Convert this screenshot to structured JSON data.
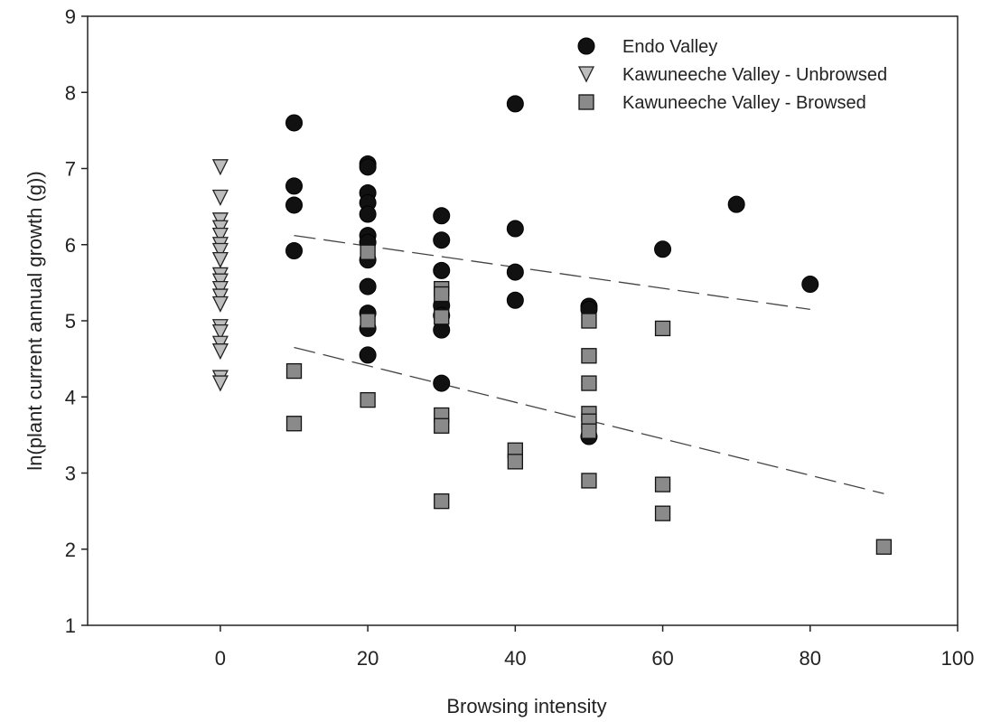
{
  "chart_data": {
    "type": "scatter",
    "xlabel": "Browsing intensity",
    "ylabel": "ln(plant current annual growth (g))",
    "xlim": [
      -18,
      100
    ],
    "ylim": [
      1,
      9
    ],
    "xticks": [
      0,
      20,
      40,
      60,
      80,
      100
    ],
    "yticks": [
      1,
      2,
      3,
      4,
      5,
      6,
      7,
      8,
      9
    ],
    "grid": false,
    "legend_position": "top-right",
    "series": [
      {
        "name": "Endo Valley",
        "marker": "circle",
        "color": "#111111",
        "points": [
          [
            10,
            7.6
          ],
          [
            10,
            6.77
          ],
          [
            10,
            6.52
          ],
          [
            10,
            5.92
          ],
          [
            20,
            7.06
          ],
          [
            20,
            7.02
          ],
          [
            20,
            6.68
          ],
          [
            20,
            6.55
          ],
          [
            20,
            6.4
          ],
          [
            20,
            6.12
          ],
          [
            20,
            6.03
          ],
          [
            20,
            5.8
          ],
          [
            20,
            5.45
          ],
          [
            20,
            5.1
          ],
          [
            20,
            4.9
          ],
          [
            20,
            4.55
          ],
          [
            30,
            6.38
          ],
          [
            30,
            6.06
          ],
          [
            30,
            5.66
          ],
          [
            30,
            5.2
          ],
          [
            30,
            5.07
          ],
          [
            30,
            4.88
          ],
          [
            30,
            4.18
          ],
          [
            40,
            7.85
          ],
          [
            40,
            6.21
          ],
          [
            40,
            5.64
          ],
          [
            40,
            5.27
          ],
          [
            50,
            5.19
          ],
          [
            50,
            5.15
          ],
          [
            50,
            3.48
          ],
          [
            60,
            5.94
          ],
          [
            70,
            6.53
          ],
          [
            80,
            5.48
          ]
        ]
      },
      {
        "name": "Kawuneeche Valley - Unbrowsed",
        "marker": "triangle-down",
        "color": "#bdbdbd",
        "points": [
          [
            0,
            7.02
          ],
          [
            0,
            6.62
          ],
          [
            0,
            6.32
          ],
          [
            0,
            6.22
          ],
          [
            0,
            6.12
          ],
          [
            0,
            6.0
          ],
          [
            0,
            5.92
          ],
          [
            0,
            5.8
          ],
          [
            0,
            5.6
          ],
          [
            0,
            5.52
          ],
          [
            0,
            5.42
          ],
          [
            0,
            5.32
          ],
          [
            0,
            5.22
          ],
          [
            0,
            4.92
          ],
          [
            0,
            4.85
          ],
          [
            0,
            4.7
          ],
          [
            0,
            4.6
          ],
          [
            0,
            4.25
          ],
          [
            0,
            4.18
          ]
        ]
      },
      {
        "name": "Kawuneeche Valley - Browsed",
        "marker": "square",
        "color": "#8a8a8a",
        "points": [
          [
            10,
            4.34
          ],
          [
            10,
            3.65
          ],
          [
            20,
            5.9
          ],
          [
            20,
            5.0
          ],
          [
            20,
            3.96
          ],
          [
            30,
            5.42
          ],
          [
            30,
            5.35
          ],
          [
            30,
            5.05
          ],
          [
            30,
            3.76
          ],
          [
            30,
            3.62
          ],
          [
            30,
            2.63
          ],
          [
            40,
            3.3
          ],
          [
            40,
            3.15
          ],
          [
            50,
            5.0
          ],
          [
            50,
            4.54
          ],
          [
            50,
            4.18
          ],
          [
            50,
            3.78
          ],
          [
            50,
            3.68
          ],
          [
            50,
            3.55
          ],
          [
            50,
            2.9
          ],
          [
            60,
            4.9
          ],
          [
            60,
            2.85
          ],
          [
            60,
            2.47
          ],
          [
            90,
            2.03
          ]
        ]
      }
    ],
    "trendlines": [
      {
        "series": "Endo Valley",
        "style": "dashed",
        "from": [
          10,
          6.12
        ],
        "to": [
          80,
          5.15
        ]
      },
      {
        "series": "Kawuneeche Valley - Browsed",
        "style": "dashed",
        "from": [
          10,
          4.65
        ],
        "to": [
          90,
          2.73
        ]
      }
    ]
  }
}
